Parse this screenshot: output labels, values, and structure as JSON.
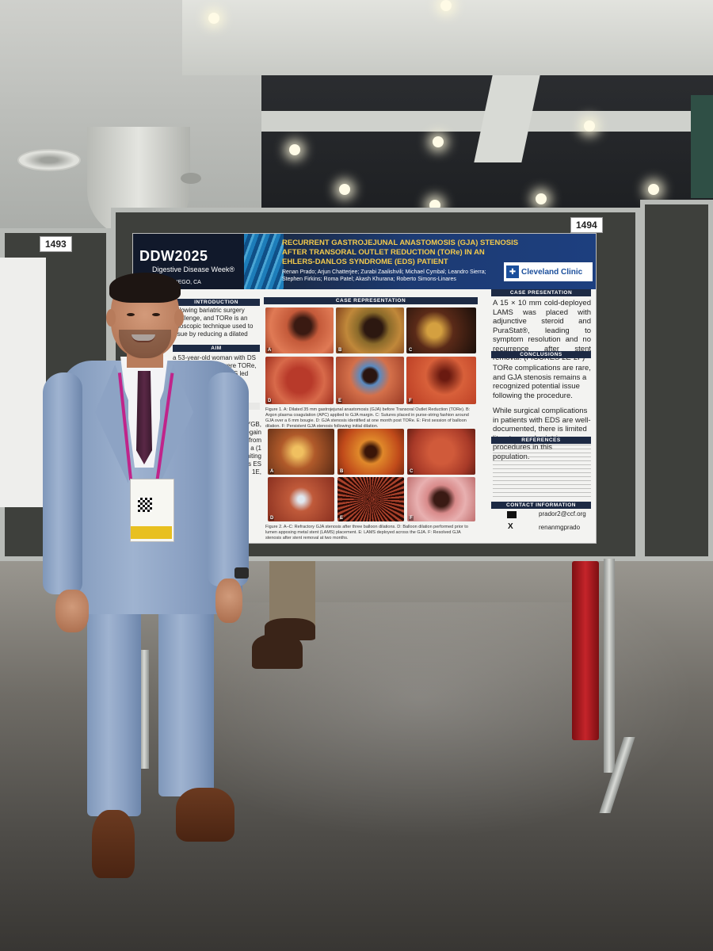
{
  "boards": {
    "left_number": "1493",
    "right_number": "1494"
  },
  "poster": {
    "event_logo": "DDW2025",
    "event_subtitle": "Digestive Disease Week®",
    "date_location": "2025 | SAN DIEGO, CA",
    "title": "RECURRENT GASTROJEJUNAL ANASTOMOSIS (GJA) STENOSIS AFTER TRANSORAL OUTLET REDUCTION (TORe) IN AN EHLERS-DANLOS SYNDROME (EDS) PATIENT",
    "authors": "Renan Prado; Arjun Chatterjee; Zurabi Zaalishvili; Michael Cymbal; Leandro Sierra; Stephen Firkins; Roma Patel; Akash Khurana; Roberto Simons-Linares",
    "institution_logo": "Cleveland Clinic",
    "sections": {
      "introduction": {
        "header": "INTRODUCTION",
        "text": "following bariatric surgery challenge, and TORe is an ndoscopic technique used to issue by reducing a dilated"
      },
      "aim": {
        "header": "AIM",
        "text": "a 53-year-old woman with DS who developed severe TORe, refractory to of a LAMS led ion."
      },
      "review": "view",
      "case_left_text": "or RYGB, ght regain oced from es over a (1 mm) omiting ulations ES 1E,",
      "case_representation": {
        "header": "CASE REPRESENTATION",
        "figure1_caption": "Figure 1. A: Dilated 35 mm gastrojejunal anastomosis (GJA) before Transoral Outlet Reduction (TORe). B: Argon plasma coagulation (APC) applied to GJA margin. C: Sutures placed in purse-string fashion around GJA over a 6 mm bougie. D: GJA stenosis identified at one month post TORe. E: First session of balloon dilation. F: Persistent GJA stenosis following initial dilation.",
        "figure2_caption": "Figure 2. A–C: Refractory GJA stenosis after three balloon dilations. D: Balloon dilation performed prior to lumen apposing metal stent (LAMS) placement. E: LAMS deployed across the GJA. F: Resolved GJA stenosis after stent removal at two months.",
        "panel_labels": [
          "A",
          "B",
          "C",
          "D",
          "E",
          "F"
        ]
      },
      "case_presentation": {
        "header": "CASE PRESENTATION",
        "text": "A 15 × 10 mm cold-deployed LAMS was placed with adjunctive steroid and PuraStat®, leading to symptom resolution and no recurrence after stent removal. (FIGURES 2E-2F)"
      },
      "conclusions": {
        "header": "CONCLUSIONS",
        "text1": "TORe complications are rare, and GJA stenosis remains a recognized potential issue following the procedure.",
        "text2": "While surgical complications in patients with EDS are well-documented, there is limited literature on bariatric procedures in this population."
      },
      "references": {
        "header": "REFERENCES"
      },
      "contact": {
        "header": "CONTACT INFORMATION",
        "email": "prador2@ccf.org",
        "handle": "renanmgprado"
      }
    }
  },
  "colors": {
    "poster_navy": "#1d2a44",
    "poster_title_gold": "#f2c94c",
    "board_gray": "#3e403c",
    "suit_blue": "#9fb3d0",
    "tie_plum": "#5a2846",
    "lanyard_magenta": "#c0248a",
    "red_post": "#c5242a"
  }
}
